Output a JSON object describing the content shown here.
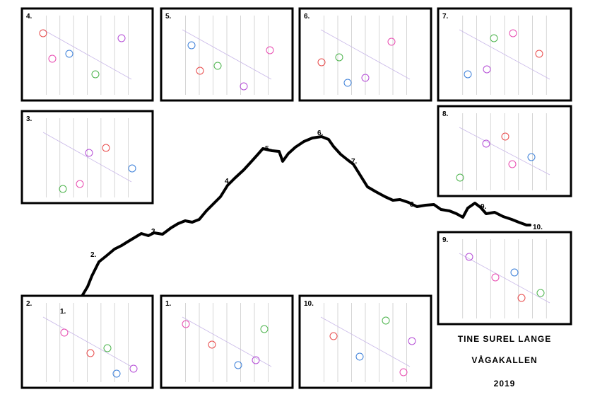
{
  "panels": [
    {
      "label": "4."
    },
    {
      "label": "5."
    },
    {
      "label": "6."
    },
    {
      "label": "7."
    },
    {
      "label": "3."
    },
    {
      "label": "8."
    },
    {
      "label": "9."
    },
    {
      "label": "2."
    },
    {
      "label": "1."
    },
    {
      "label": "10."
    }
  ],
  "profile_labels": [
    "1.",
    "2.",
    "3.",
    "4.",
    "5.",
    "6.",
    "7.",
    "8.",
    "9.",
    "10."
  ],
  "credits": {
    "artist": "TINE SUREL LANGE",
    "title": "VÅGAKALLEN",
    "year": "2019"
  }
}
